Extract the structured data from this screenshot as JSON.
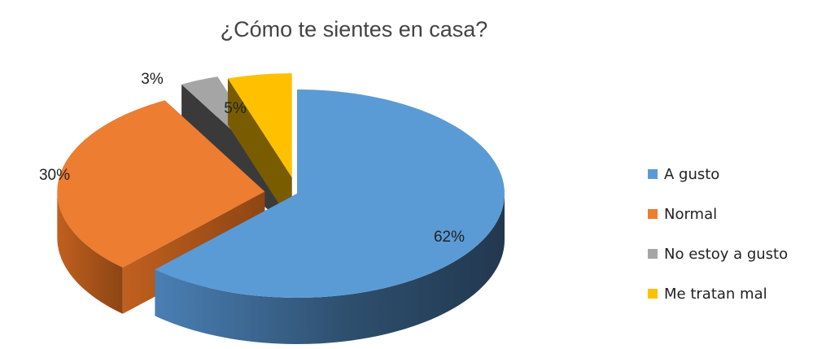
{
  "chart_data": {
    "type": "pie",
    "title": "¿Cómo te sientes en casa?",
    "categories": [
      "A gusto",
      "Normal",
      "No estoy a gusto",
      "Me tratan mal"
    ],
    "values": [
      62,
      30,
      3,
      5
    ],
    "data_labels": [
      "62%",
      "30%",
      "3%",
      "5%"
    ],
    "colors": [
      "#5B9BD5",
      "#ED7D31",
      "#A5A5A5",
      "#FFC000"
    ],
    "legend": "right",
    "exploded": true,
    "style": "3d"
  }
}
